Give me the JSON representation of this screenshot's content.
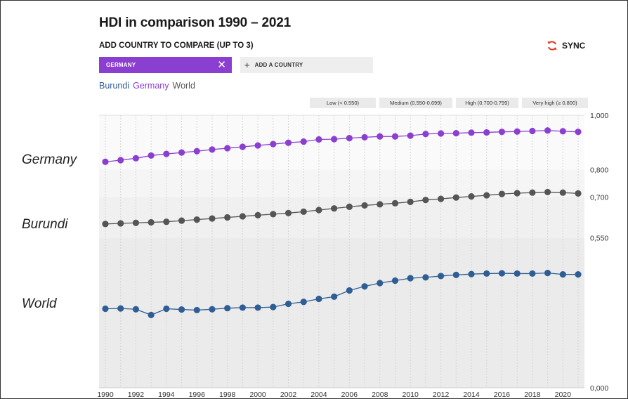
{
  "title": "HDI in comparison 1990 – 2021",
  "subtitle": "ADD COUNTRY TO COMPARE (UP TO 3)",
  "sync": {
    "label": "SYNC",
    "icon": "sync-icon",
    "color": "#e03a1e"
  },
  "compare_chip": {
    "label": "GERMANY",
    "close": "✕",
    "color": "#8b3fd0"
  },
  "add_country": {
    "plus": "+",
    "label": "ADD A COUNTRY"
  },
  "legend_items": [
    {
      "label": "Burundi",
      "color": "#2f5e94"
    },
    {
      "label": "Germany",
      "color": "#8b3fd0"
    },
    {
      "label": "World",
      "color": "#555555"
    }
  ],
  "tiers": [
    "Low (< 0.550)",
    "Medium (0.550-0.699)",
    "High (0.700-0.799)",
    "Very high (≥ 0.800)"
  ],
  "side_labels": [
    "Germany",
    "Burundi",
    "World"
  ],
  "chart_data": {
    "type": "line",
    "x": [
      1990,
      1991,
      1992,
      1993,
      1994,
      1995,
      1996,
      1997,
      1998,
      1999,
      2000,
      2001,
      2002,
      2003,
      2004,
      2005,
      2006,
      2007,
      2008,
      2009,
      2010,
      2011,
      2012,
      2013,
      2014,
      2015,
      2016,
      2017,
      2018,
      2019,
      2020,
      2021
    ],
    "x_tick_labels": [
      "1990",
      "1992",
      "1994",
      "1996",
      "1998",
      "2000",
      "2002",
      "2004",
      "2006",
      "2008",
      "2010",
      "2012",
      "2014",
      "2016",
      "2018",
      "2020"
    ],
    "y_tick_labels": [
      "1,000",
      "0,800",
      "0,700",
      "0,550",
      "0,000"
    ],
    "y_ticks": [
      1.0,
      0.8,
      0.7,
      0.55,
      0.0
    ],
    "ylim": [
      0,
      1.0
    ],
    "bands": [
      {
        "from": 0.0,
        "to": 0.55,
        "color": "#ebebeb"
      },
      {
        "from": 0.55,
        "to": 0.7,
        "color": "#f0f0f0"
      },
      {
        "from": 0.7,
        "to": 0.8,
        "color": "#f5f5f5"
      },
      {
        "from": 0.8,
        "to": 1.0,
        "color": "#fafafa"
      }
    ],
    "grid": true,
    "series": [
      {
        "name": "Germany",
        "color": "#8b3fd0",
        "values": [
          0.829,
          0.835,
          0.842,
          0.852,
          0.858,
          0.863,
          0.868,
          0.874,
          0.879,
          0.884,
          0.889,
          0.894,
          0.899,
          0.903,
          0.911,
          0.912,
          0.916,
          0.919,
          0.922,
          0.922,
          0.925,
          0.931,
          0.933,
          0.934,
          0.936,
          0.937,
          0.939,
          0.94,
          0.942,
          0.944,
          0.941,
          0.939
        ]
      },
      {
        "name": "World",
        "color": "#555555",
        "values": [
          0.601,
          0.603,
          0.605,
          0.607,
          0.609,
          0.613,
          0.617,
          0.621,
          0.625,
          0.629,
          0.633,
          0.637,
          0.641,
          0.646,
          0.652,
          0.658,
          0.664,
          0.669,
          0.673,
          0.677,
          0.682,
          0.689,
          0.693,
          0.698,
          0.702,
          0.706,
          0.711,
          0.714,
          0.716,
          0.718,
          0.716,
          0.713
        ]
      },
      {
        "name": "Burundi",
        "color": "#2f5e94",
        "values": [
          0.29,
          0.291,
          0.288,
          0.267,
          0.29,
          0.287,
          0.285,
          0.288,
          0.292,
          0.294,
          0.294,
          0.296,
          0.308,
          0.315,
          0.326,
          0.334,
          0.357,
          0.372,
          0.384,
          0.393,
          0.402,
          0.405,
          0.41,
          0.414,
          0.417,
          0.419,
          0.42,
          0.419,
          0.419,
          0.421,
          0.416,
          0.416
        ]
      }
    ]
  }
}
